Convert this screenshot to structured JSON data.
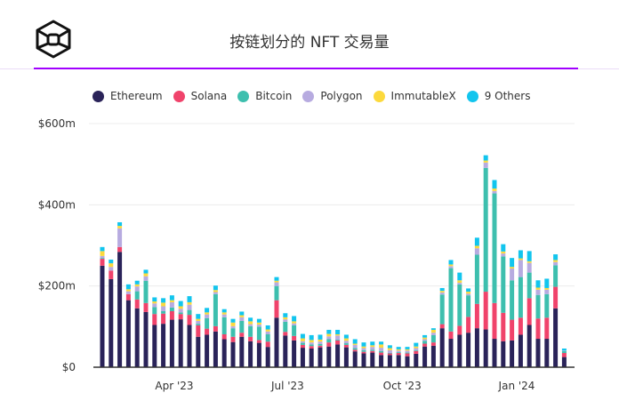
{
  "header": {
    "title": "按链划分的 NFT 交易量",
    "logo": "hexagon-cube-logo",
    "accent_color": "#a100ff"
  },
  "chart_data": {
    "type": "bar",
    "stacked": true,
    "title": "按链划分的 NFT 交易量",
    "xlabel": "",
    "ylabel": "",
    "ylim": [
      0,
      600
    ],
    "y_unit": "$m",
    "y_ticks": [
      {
        "value": 0,
        "label": "$0"
      },
      {
        "value": 200,
        "label": "$200m"
      },
      {
        "value": 400,
        "label": "$400m"
      },
      {
        "value": 600,
        "label": "$600m"
      }
    ],
    "x_ticks": [
      {
        "date": "2023-04-01",
        "label": "Apr '23"
      },
      {
        "date": "2023-07-01",
        "label": "Jul '23"
      },
      {
        "date": "2023-10-01",
        "label": "Oct '23"
      },
      {
        "date": "2024-01-01",
        "label": "Jan '24"
      }
    ],
    "grid": true,
    "legend_position": "top-left",
    "categories": [
      "2023-02-05",
      "2023-02-12",
      "2023-02-19",
      "2023-02-26",
      "2023-03-05",
      "2023-03-12",
      "2023-03-19",
      "2023-03-26",
      "2023-04-02",
      "2023-04-09",
      "2023-04-16",
      "2023-04-23",
      "2023-04-30",
      "2023-05-07",
      "2023-05-14",
      "2023-05-21",
      "2023-05-28",
      "2023-06-04",
      "2023-06-11",
      "2023-06-18",
      "2023-06-25",
      "2023-07-02",
      "2023-07-09",
      "2023-07-16",
      "2023-07-23",
      "2023-07-30",
      "2023-08-06",
      "2023-08-13",
      "2023-08-20",
      "2023-08-27",
      "2023-09-03",
      "2023-09-10",
      "2023-09-17",
      "2023-09-24",
      "2023-10-01",
      "2023-10-08",
      "2023-10-15",
      "2023-10-22",
      "2023-10-29",
      "2023-11-05",
      "2023-11-12",
      "2023-11-19",
      "2023-11-26",
      "2023-12-03",
      "2023-12-10",
      "2023-12-17",
      "2023-12-24",
      "2023-12-31",
      "2024-01-07",
      "2024-01-14",
      "2024-01-21",
      "2024-01-28",
      "2024-02-04",
      "2024-02-11"
    ],
    "series": [
      {
        "name": "Ethereum",
        "color": "#2a2359",
        "values": [
          250,
          217,
          284,
          165,
          145,
          136,
          104,
          107,
          117,
          118,
          104,
          75,
          80,
          88,
          69,
          62,
          75,
          64,
          60,
          50,
          122,
          78,
          66,
          48,
          46,
          49,
          51,
          56,
          49,
          39,
          34,
          36,
          30,
          30,
          30,
          27,
          33,
          51,
          53,
          96,
          70,
          80,
          85,
          96,
          93,
          70,
          64,
          66,
          80,
          104,
          70,
          70,
          145,
          25
        ]
      },
      {
        "name": "Solana",
        "color": "#f0436b",
        "values": [
          17,
          21,
          12,
          15,
          22,
          22,
          27,
          25,
          21,
          13,
          25,
          28,
          15,
          13,
          12,
          13,
          10,
          11,
          7,
          13,
          43,
          9,
          11,
          7,
          6,
          4,
          10,
          10,
          6,
          4,
          4,
          4,
          6,
          4,
          5,
          7,
          7,
          7,
          8,
          10,
          18,
          22,
          39,
          60,
          93,
          88,
          70,
          51,
          42,
          66,
          50,
          52,
          53,
          10
        ]
      },
      {
        "name": "Bitcoin",
        "color": "#3dbfae",
        "values": [
          2,
          0,
          0,
          0,
          20,
          55,
          17,
          6,
          9,
          4,
          12,
          4,
          26,
          79,
          42,
          21,
          29,
          26,
          33,
          18,
          35,
          25,
          26,
          5,
          4,
          4,
          8,
          2,
          4,
          4,
          4,
          3,
          4,
          1,
          2,
          2,
          2,
          7,
          18,
          73,
          156,
          102,
          53,
          121,
          305,
          270,
          139,
          97,
          100,
          63,
          58,
          58,
          53,
          5
        ]
      },
      {
        "name": "Polygon",
        "color": "#b7abe0",
        "values": [
          5,
          9,
          46,
          7,
          12,
          11,
          9,
          12,
          13,
          9,
          13,
          7,
          9,
          5,
          7,
          5,
          9,
          5,
          5,
          7,
          9,
          6,
          5,
          4,
          5,
          6,
          7,
          10,
          6,
          8,
          5,
          7,
          8,
          7,
          4,
          5,
          5,
          4,
          6,
          5,
          5,
          4,
          4,
          16,
          13,
          6,
          7,
          29,
          42,
          24,
          13,
          11,
          8,
          1
        ]
      },
      {
        "name": "ImmutableX",
        "color": "#fcd93c",
        "values": [
          12,
          9,
          6,
          5,
          5,
          7,
          5,
          9,
          5,
          6,
          6,
          5,
          5,
          5,
          5,
          9,
          5,
          7,
          5,
          5,
          4,
          5,
          5,
          7,
          6,
          5,
          6,
          3,
          6,
          3,
          4,
          4,
          8,
          5,
          3,
          3,
          4,
          4,
          7,
          4,
          4,
          6,
          5,
          6,
          5,
          6,
          5,
          4,
          4,
          4,
          5,
          4,
          5,
          0
        ]
      },
      {
        "name": "9 Others",
        "color": "#12c5ee",
        "values": [
          10,
          9,
          9,
          12,
          9,
          9,
          10,
          11,
          12,
          13,
          15,
          12,
          11,
          11,
          8,
          9,
          9,
          9,
          9,
          10,
          9,
          10,
          13,
          11,
          12,
          12,
          10,
          11,
          9,
          11,
          10,
          9,
          7,
          7,
          6,
          6,
          9,
          6,
          4,
          7,
          11,
          19,
          8,
          20,
          13,
          21,
          18,
          22,
          20,
          25,
          18,
          23,
          14,
          5
        ]
      }
    ]
  }
}
